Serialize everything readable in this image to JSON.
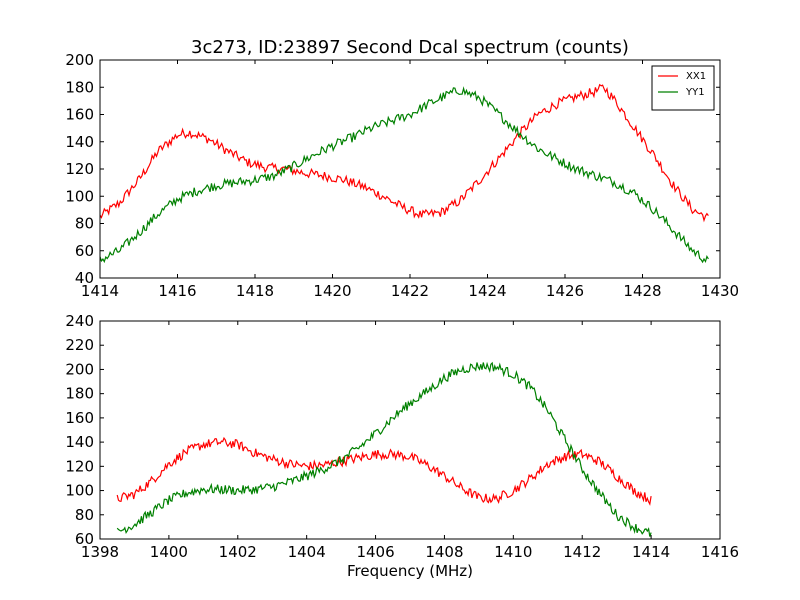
{
  "figure": {
    "title": "3c273, ID:23897 Second Dcal spectrum (counts)"
  },
  "chart_data": [
    {
      "type": "line",
      "title": "3c273, ID:23897 Second Dcal spectrum (counts)",
      "xlabel": "",
      "ylabel": "",
      "xlim": [
        1414,
        1430
      ],
      "ylim": [
        40,
        200
      ],
      "xticks": [
        "1414",
        "1416",
        "1418",
        "1420",
        "1422",
        "1424",
        "1426",
        "1428",
        "1430"
      ],
      "yticks": [
        "40",
        "60",
        "80",
        "100",
        "120",
        "140",
        "160",
        "180",
        "200"
      ],
      "grid": false,
      "legend_position": "top-right",
      "series": [
        {
          "name": "XX1",
          "color": "#ff0000",
          "x": [
            1414.0,
            1414.5,
            1415.0,
            1415.5,
            1416.0,
            1416.3,
            1416.8,
            1417.3,
            1417.8,
            1418.3,
            1418.8,
            1419.3,
            1419.8,
            1420.3,
            1420.8,
            1421.3,
            1421.8,
            1422.3,
            1422.8,
            1423.3,
            1423.8,
            1424.3,
            1424.8,
            1425.3,
            1425.8,
            1426.3,
            1426.8,
            1427.0,
            1427.3,
            1427.8,
            1428.3,
            1428.8,
            1429.3,
            1429.7
          ],
          "y": [
            85,
            95,
            112,
            133,
            145,
            147,
            142,
            133,
            125,
            121,
            120,
            117,
            115,
            112,
            107,
            100,
            92,
            86,
            88,
            97,
            112,
            128,
            145,
            160,
            168,
            173,
            177,
            180,
            170,
            150,
            130,
            108,
            90,
            84
          ]
        },
        {
          "name": "YY1",
          "color": "#008000",
          "x": [
            1414.0,
            1414.5,
            1415.0,
            1415.5,
            1416.0,
            1416.5,
            1417.0,
            1417.5,
            1418.0,
            1418.5,
            1419.0,
            1419.5,
            1420.0,
            1420.5,
            1421.0,
            1421.5,
            1422.0,
            1422.5,
            1423.0,
            1423.3,
            1423.8,
            1424.3,
            1424.8,
            1425.3,
            1425.8,
            1426.3,
            1426.8,
            1427.3,
            1427.8,
            1428.3,
            1428.8,
            1429.3,
            1429.7
          ],
          "y": [
            53,
            60,
            73,
            87,
            98,
            104,
            108,
            110,
            112,
            115,
            122,
            130,
            137,
            143,
            150,
            155,
            160,
            168,
            175,
            178,
            172,
            160,
            147,
            135,
            127,
            120,
            115,
            110,
            102,
            90,
            75,
            60,
            52
          ]
        }
      ]
    },
    {
      "type": "line",
      "title": "",
      "xlabel": "Frequency (MHz)",
      "ylabel": "",
      "xlim": [
        1398,
        1416
      ],
      "ylim": [
        60,
        240
      ],
      "xticks": [
        "1398",
        "1400",
        "1402",
        "1404",
        "1406",
        "1408",
        "1410",
        "1412",
        "1414",
        "1416"
      ],
      "yticks": [
        "60",
        "80",
        "100",
        "120",
        "140",
        "160",
        "180",
        "200",
        "220",
        "240"
      ],
      "grid": false,
      "series": [
        {
          "color": "#ff0000",
          "x": [
            1398.5,
            1399.0,
            1399.5,
            1400.0,
            1400.5,
            1401.0,
            1401.5,
            1402.0,
            1402.5,
            1403.0,
            1403.5,
            1404.0,
            1404.5,
            1405.0,
            1405.5,
            1406.0,
            1406.5,
            1407.0,
            1407.5,
            1408.0,
            1408.5,
            1409.0,
            1409.5,
            1410.0,
            1410.5,
            1411.0,
            1411.5,
            1412.0,
            1412.5,
            1413.0,
            1413.5,
            1414.0
          ],
          "y": [
            93,
            97,
            108,
            122,
            132,
            138,
            140,
            138,
            131,
            126,
            122,
            120,
            121,
            124,
            127,
            130,
            130,
            128,
            121,
            112,
            102,
            94,
            93,
            100,
            110,
            122,
            128,
            130,
            124,
            112,
            100,
            92
          ]
        },
        {
          "color": "#008000",
          "x": [
            1398.5,
            1399.0,
            1399.5,
            1400.0,
            1400.5,
            1401.0,
            1401.5,
            1402.0,
            1402.5,
            1403.0,
            1403.5,
            1404.0,
            1404.5,
            1405.0,
            1405.5,
            1406.0,
            1406.5,
            1407.0,
            1407.5,
            1408.0,
            1408.5,
            1409.0,
            1409.5,
            1410.0,
            1410.5,
            1411.0,
            1411.5,
            1412.0,
            1412.5,
            1413.0,
            1413.5,
            1414.0
          ],
          "y": [
            66,
            72,
            82,
            92,
            98,
            101,
            101,
            100,
            101,
            103,
            107,
            112,
            118,
            125,
            135,
            147,
            160,
            172,
            182,
            193,
            200,
            203,
            202,
            196,
            185,
            166,
            142,
            118,
            98,
            80,
            70,
            64
          ]
        }
      ]
    }
  ]
}
